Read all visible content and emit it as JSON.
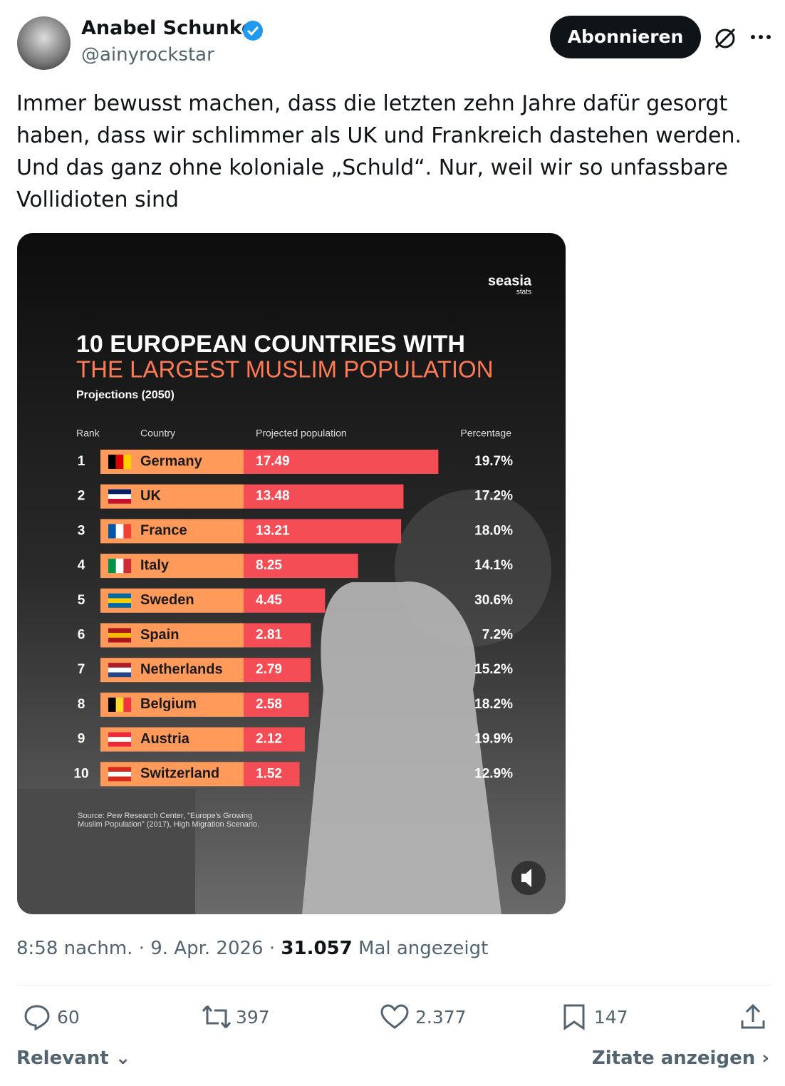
{
  "author": {
    "name": "Anabel Schunke",
    "handle": "@ainyrockstar"
  },
  "follow_button": "Abonnieren",
  "text": "Immer bewusst machen, dass die letzten zehn Jahre dafür gesorgt haben, dass wir schlimmer als UK und Frankreich dastehen werden. Und das ganz ohne koloniale „Schuld“. Nur, weil wir so unfassbare Vollidioten sind",
  "media": {
    "brand": "seasia",
    "brand_sub": "stats",
    "title_line1": "10 EUROPEAN COUNTRIES WITH",
    "title_line2": "THE LARGEST MUSLIM POPULATION",
    "subtitle": "Projections (2050)",
    "columns": [
      "Rank",
      "Country",
      "Projected population",
      "Percentage"
    ],
    "rows": [
      {
        "rank": 1,
        "country": "Germany",
        "population": 17.49,
        "percentage": "19.7%"
      },
      {
        "rank": 2,
        "country": "UK",
        "population": 13.48,
        "percentage": "17.2%"
      },
      {
        "rank": 3,
        "country": "France",
        "population": 13.21,
        "percentage": "18.0%"
      },
      {
        "rank": 4,
        "country": "Italy",
        "population": 8.25,
        "percentage": "14.1%"
      },
      {
        "rank": 5,
        "country": "Sweden",
        "population": 4.45,
        "percentage": "30.6%"
      },
      {
        "rank": 6,
        "country": "Spain",
        "population": 2.81,
        "percentage": "7.2%"
      },
      {
        "rank": 7,
        "country": "Netherlands",
        "population": 2.79,
        "percentage": "15.2%"
      },
      {
        "rank": 8,
        "country": "Belgium",
        "population": 2.58,
        "percentage": "18.2%"
      },
      {
        "rank": 9,
        "country": "Austria",
        "population": 2.12,
        "percentage": "19.9%"
      },
      {
        "rank": 10,
        "country": "Switzerland",
        "population": 1.52,
        "percentage": "12.9%"
      }
    ],
    "source_line1": "Source: Pew Research Center, \"Europe's Growing",
    "source_line2": "Muslim Population\" (2017), High Migration Scenario."
  },
  "meta": {
    "time": "8:58 nachm.",
    "date": "9. Apr. 2026",
    "views": "31.057",
    "views_label": "Mal angezeigt"
  },
  "actions": {
    "replies": "60",
    "reposts": "397",
    "likes": "2.377",
    "bookmarks": "147"
  },
  "footer": {
    "sort": "Relevant",
    "quotes": "Zitate anzeigen"
  }
}
